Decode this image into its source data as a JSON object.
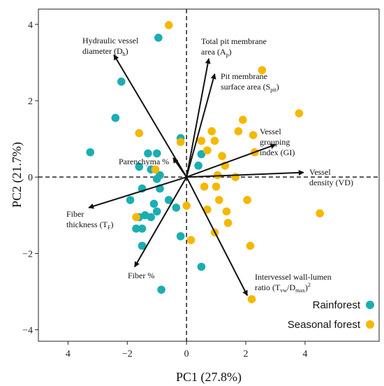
{
  "chart_data": {
    "type": "scatter",
    "title": "",
    "xlabel": "PC1 (27.8%)",
    "ylabel": "PC2 (21.7%)",
    "xlim": [
      -5.0,
      6.5
    ],
    "ylim": [
      -4.3,
      4.4
    ],
    "xticks": [
      4,
      -2,
      0,
      2,
      4
    ],
    "xtick_labels": [
      "4",
      "−2",
      "0",
      "2",
      "4"
    ],
    "yticks": [
      -4,
      -2,
      0,
      2,
      4
    ],
    "ytick_labels": [
      "−4",
      "−2",
      "0",
      "2",
      "4"
    ],
    "reference_lines": {
      "x": 0,
      "y": 0,
      "style": "dashed"
    },
    "grid": false,
    "legend_position": "bottom-right",
    "colors": {
      "Rainforest": "#1aaeb3",
      "Seasonal forest": "#f5b800"
    },
    "series": [
      {
        "name": "Rainforest",
        "color": "#1aaeb3",
        "points": [
          [
            -0.95,
            3.65
          ],
          [
            -2.2,
            2.5
          ],
          [
            -2.4,
            1.55
          ],
          [
            -3.25,
            0.65
          ],
          [
            -1.3,
            0.62
          ],
          [
            -1.0,
            0.62
          ],
          [
            -0.2,
            1.02
          ],
          [
            0.5,
            0.6
          ],
          [
            -1.6,
            0.27
          ],
          [
            -1.2,
            0.2
          ],
          [
            -0.9,
            0.05
          ],
          [
            -1.0,
            -0.05
          ],
          [
            -1.5,
            -0.3
          ],
          [
            -0.9,
            -0.3
          ],
          [
            0.4,
            0.3
          ],
          [
            -1.9,
            -0.6
          ],
          [
            -1.1,
            -0.7
          ],
          [
            -0.6,
            -0.6
          ],
          [
            -0.35,
            -0.8
          ],
          [
            -1.0,
            -0.9
          ],
          [
            -1.2,
            -1.05
          ],
          [
            -1.4,
            -1.0
          ],
          [
            -1.6,
            -1.05
          ],
          [
            -1.7,
            -1.35
          ],
          [
            -1.5,
            -1.35
          ],
          [
            -0.2,
            -1.55
          ],
          [
            -1.5,
            -1.8
          ],
          [
            0.5,
            -2.35
          ],
          [
            -0.85,
            -2.95
          ]
        ]
      },
      {
        "name": "Seasonal forest",
        "color": "#f5b800",
        "points": [
          [
            -0.6,
            3.98
          ],
          [
            2.55,
            2.8
          ],
          [
            3.8,
            1.67
          ],
          [
            1.9,
            1.5
          ],
          [
            1.75,
            1.2
          ],
          [
            0.85,
            1.2
          ],
          [
            -1.6,
            1.15
          ],
          [
            2.25,
            1.1
          ],
          [
            -0.2,
            0.92
          ],
          [
            0.5,
            0.95
          ],
          [
            0.95,
            0.95
          ],
          [
            2.3,
            0.65
          ],
          [
            1.2,
            0.55
          ],
          [
            0.7,
            0.7
          ],
          [
            1.3,
            0.3
          ],
          [
            -1.05,
            0.2
          ],
          [
            1.05,
            0.05
          ],
          [
            1.65,
            0.0
          ],
          [
            1.0,
            -0.25
          ],
          [
            0.6,
            -0.25
          ],
          [
            2.05,
            -0.6
          ],
          [
            0.7,
            -0.85
          ],
          [
            1.1,
            -0.6
          ],
          [
            1.4,
            -1.2
          ],
          [
            0.95,
            -1.45
          ],
          [
            1.35,
            -0.9
          ],
          [
            4.5,
            -0.95
          ],
          [
            -1.7,
            -1.05
          ],
          [
            0.15,
            -1.65
          ],
          [
            2.15,
            -1.8
          ],
          [
            2.2,
            -3.2
          ],
          [
            0.0,
            -0.75
          ]
        ]
      }
    ],
    "loadings": [
      {
        "lines": [
          "Hydraulic vessel",
          "diameter (D",
          "h",
          ")"
        ],
        "x": -2.45,
        "y": 3.2
      },
      {
        "lines": [
          "Total pit membrane",
          "area (A",
          "p",
          ")"
        ],
        "x": 0.75,
        "y": 3.1
      },
      {
        "lines": [
          "Pit membrane",
          "surface area (S",
          "pit",
          ")"
        ],
        "x": 0.95,
        "y": 2.7
      },
      {
        "lines": [
          "Vessel",
          "grouping",
          "index (GI)"
        ],
        "x": 3.0,
        "y": 0.85
      },
      {
        "lines": [
          "Vessel",
          "density (VD)"
        ],
        "x": 3.95,
        "y": 0.12
      },
      {
        "lines": [
          "Parenchyma %"
        ],
        "x": -0.45,
        "y": 0.5
      },
      {
        "lines": [
          "Fiber",
          "thickness (T",
          "F",
          ")"
        ],
        "x": -3.3,
        "y": -0.8
      },
      {
        "lines": [
          "Fiber %"
        ],
        "x": -1.75,
        "y": -2.35
      },
      {
        "lines": [
          "Intervessel wall-lumen",
          "ratio (T",
          "vw",
          "/D",
          "max",
          ")",
          "2"
        ],
        "x": 2.05,
        "y": -3.1
      }
    ]
  },
  "legend": {
    "items": [
      {
        "label": "Rainforest",
        "color": "#1aaeb3"
      },
      {
        "label": "Seasonal forest",
        "color": "#f5b800"
      }
    ]
  }
}
